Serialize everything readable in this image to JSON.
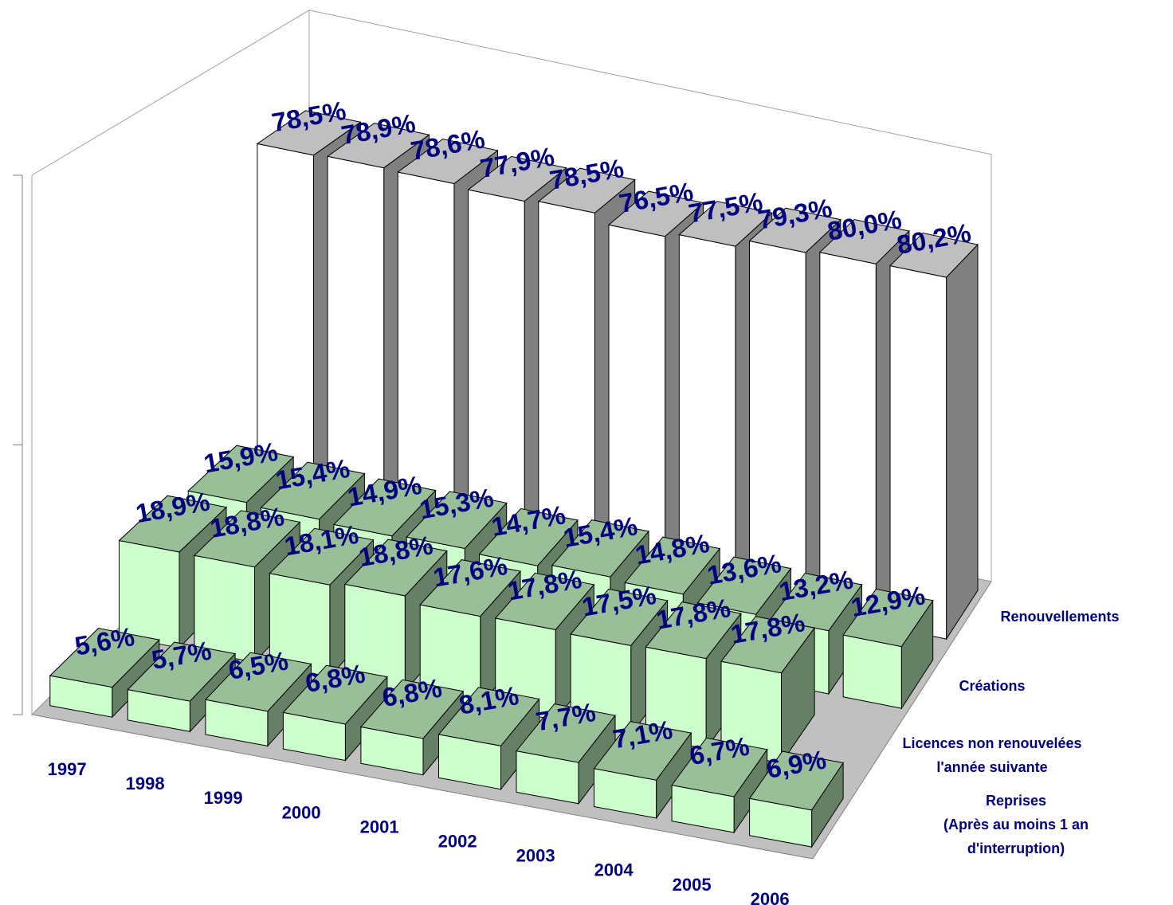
{
  "chart_data": {
    "type": "bar3d",
    "categories": [
      "1997",
      "1998",
      "1999",
      "2000",
      "2001",
      "2002",
      "2003",
      "2004",
      "2005",
      "2006"
    ],
    "series": [
      {
        "name": "Renouvellements",
        "color": "#ffffff",
        "values": [
          78.5,
          78.9,
          78.6,
          77.9,
          78.5,
          76.5,
          77.5,
          79.3,
          80.0,
          80.2
        ],
        "value_labels": [
          "78,5%",
          "78,9%",
          "78,6%",
          "77,9%",
          "78,5%",
          "76,5%",
          "77,5%",
          "79,3%",
          "80,0%",
          "80,2%"
        ]
      },
      {
        "name": "Créations",
        "color": "#ccffcc",
        "values": [
          15.9,
          15.4,
          14.9,
          15.3,
          14.7,
          15.4,
          14.8,
          13.6,
          13.2,
          12.9
        ],
        "value_labels": [
          "15,9%",
          "15,4%",
          "14,9%",
          "15,3%",
          "14,7%",
          "15,4%",
          "14,8%",
          "13,6%",
          "13,2%",
          "12,9%"
        ]
      },
      {
        "name": "Licences non renouvelées\nl'année suivante",
        "color": "#ccffcc",
        "values": [
          18.9,
          18.8,
          18.1,
          18.8,
          17.6,
          17.8,
          17.5,
          17.8,
          17.8,
          null
        ],
        "value_labels": [
          "18,9%",
          "18,8%",
          "18,1%",
          "18,8%",
          "17,6%",
          "17,8%",
          "17,5%",
          "17,8%",
          "17,8%",
          null
        ]
      },
      {
        "name": "Reprises\n(Après au moins 1 an d'interruption)",
        "color": "#ccffcc",
        "values": [
          5.6,
          5.7,
          6.5,
          6.8,
          6.8,
          8.1,
          7.7,
          7.1,
          6.7,
          6.9
        ],
        "value_labels": [
          "5,6%",
          "5,7%",
          "6,5%",
          "6,8%",
          "6,8%",
          "8,1%",
          "7,7%",
          "7,1%",
          "6,7%",
          "6,9%"
        ]
      }
    ],
    "ylim": [
      0,
      100
    ],
    "yticks": [
      0,
      50,
      100
    ]
  }
}
